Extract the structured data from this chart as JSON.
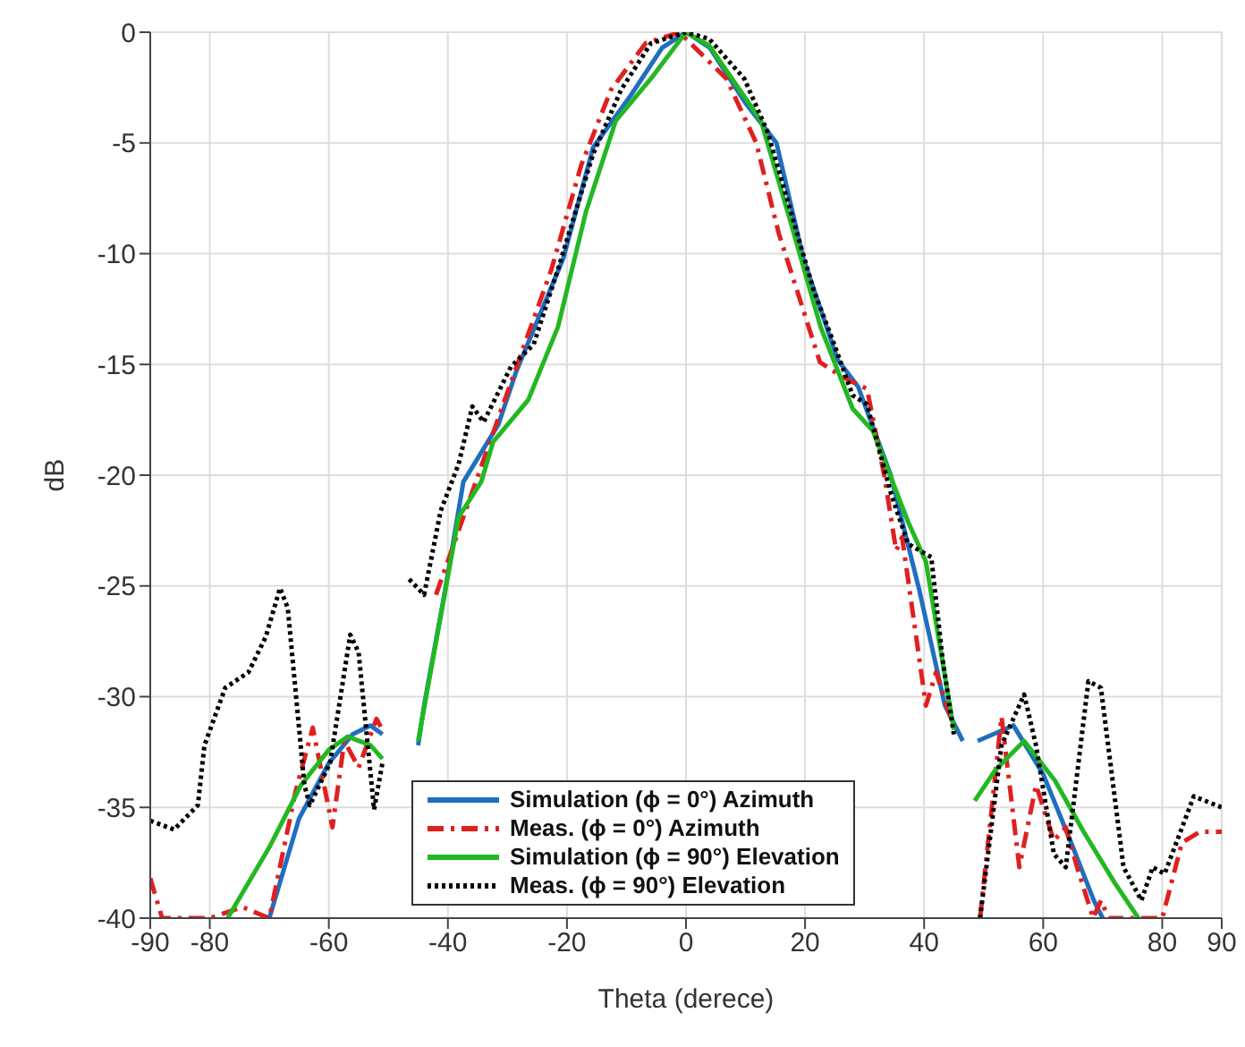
{
  "chart_data": {
    "type": "line",
    "xlabel": "Theta (derece)",
    "ylabel": "dB",
    "xlim": [
      -90,
      90
    ],
    "ylim": [
      -40,
      0
    ],
    "xticks": [
      -90,
      -80,
      -60,
      -40,
      -20,
      0,
      20,
      40,
      60,
      80,
      90
    ],
    "yticks": [
      -40,
      -35,
      -30,
      -25,
      -20,
      -15,
      -10,
      -5,
      0
    ],
    "grid": true,
    "legend": "bottom",
    "marker": "none",
    "series": [
      {
        "name": "Simulation  (ϕ = 0°) Azimuth",
        "color": "#1f6fbf",
        "line_style": "solid",
        "x": [
          -70,
          -65,
          -60,
          -56,
          -53,
          -51,
          -49,
          -45,
          -44,
          -40.6,
          -37.4,
          -31.5,
          -28.5,
          -20.6,
          -15.6,
          -9.4,
          -4,
          0,
          4,
          10,
          15.2,
          19.7,
          25.5,
          28.9,
          34.4,
          39.2,
          43.5,
          46.5,
          47.6,
          49,
          55,
          60,
          65,
          68.5,
          70
        ],
        "values": [
          -40,
          -35.5,
          -33,
          -31.7,
          -31.3,
          -31.7,
          null,
          -32.2,
          -30.4,
          -25.4,
          -20.3,
          -17.7,
          -15.3,
          -10.2,
          -5.2,
          -2.9,
          -0.7,
          0,
          -0.7,
          -3.2,
          -5,
          -10.2,
          -14.8,
          -16,
          -20,
          -25.2,
          -30.4,
          -32,
          null,
          -32,
          -31.3,
          -33.5,
          -36.8,
          -39.2,
          -40
        ]
      },
      {
        "name": "Meas.  (ϕ = 0°) Azimuth",
        "color": "#e02020",
        "line_style": "dashed",
        "x": [
          -90,
          -88,
          -80,
          -74.5,
          -70,
          -65.6,
          -62.7,
          -59.4,
          -57.4,
          -55,
          -52,
          -51,
          -45,
          -42,
          -35.3,
          -31.5,
          -27.4,
          -22.6,
          -17.6,
          -12.6,
          -6.8,
          -1,
          0,
          6.8,
          11.8,
          15.6,
          20.6,
          22.5,
          26.5,
          30.4,
          33.3,
          35.3,
          36.3,
          40.3,
          42,
          45,
          47.6,
          49.4,
          53,
          56,
          58.8,
          61.8,
          63.8,
          65.7,
          68.4,
          69.7,
          71,
          80,
          83.3,
          86.3,
          90
        ],
        "values": [
          -38.2,
          -40,
          -40,
          -39.5,
          -40,
          -34.3,
          -31.4,
          -35.9,
          -32,
          -33.2,
          -31,
          -31.5,
          null,
          -25.4,
          -20.3,
          -17.4,
          -14.3,
          -10.7,
          -6,
          -2.6,
          -0.5,
          0,
          -0.3,
          -2.1,
          -5,
          -9.1,
          -13.3,
          -14.9,
          -15.6,
          -16.1,
          -20,
          -23.4,
          -22.8,
          -30.4,
          -28.9,
          -31.4,
          null,
          -40,
          -30.9,
          -37.7,
          -34,
          -36.5,
          -35.9,
          -37.7,
          -40,
          -39.2,
          -40,
          -40,
          -36.6,
          -36.1,
          -36.1
        ]
      },
      {
        "name": "Simulation  (ϕ = 90°) Elevation",
        "color": "#22b822",
        "line_style": "solid",
        "x": [
          -77,
          -70,
          -64.7,
          -60,
          -56.8,
          -53,
          -51,
          -49,
          -45,
          -38.2,
          -34.4,
          -32.4,
          -26.5,
          -21.5,
          -16.8,
          -11.8,
          -5.9,
          0,
          3.9,
          12.6,
          17.6,
          22.6,
          28,
          31.4,
          37.3,
          40.3,
          45,
          47.6,
          48.5,
          52,
          56.8,
          62,
          66.8,
          72,
          76
        ],
        "values": [
          -40,
          -36.8,
          -34,
          -32.4,
          -31.8,
          -32.2,
          -32.8,
          null,
          -32,
          -21.9,
          -20.3,
          -18.5,
          -16.6,
          -13.3,
          -8.1,
          -4,
          -2.1,
          0,
          -0.6,
          -4,
          -8.6,
          -13.3,
          -17,
          -18,
          -22.1,
          -23.9,
          -31.5,
          null,
          -34.7,
          -33.3,
          -32,
          -33.8,
          -36.1,
          -38.4,
          -40
        ]
      },
      {
        "name": "Meas.  (ϕ = 90°) Elevation",
        "color": "#000000",
        "line_style": "dotted",
        "x": [
          -90,
          -86,
          -82,
          -80.9,
          -77.4,
          -73.5,
          -70.6,
          -68.2,
          -66.9,
          -64.1,
          -63.2,
          -59.8,
          -56.4,
          -55,
          -52.4,
          -51,
          -49,
          -46.5,
          -44,
          -41.2,
          -38.2,
          -35.9,
          -34,
          -29.4,
          -25.6,
          -21.5,
          -15.6,
          -10.9,
          -5.9,
          0,
          3.9,
          9.8,
          13.7,
          17.6,
          21.5,
          24.5,
          28,
          30.4,
          34.4,
          37.3,
          41.2,
          43.1,
          45,
          47.6,
          49.4,
          53,
          56.8,
          58.8,
          61.8,
          63.8,
          67.6,
          69.7,
          73.5,
          76.5,
          78.4,
          80.4,
          85.3,
          90
        ],
        "values": [
          -35.6,
          -36,
          -34.9,
          -32.2,
          -29.6,
          -28.9,
          -27.3,
          -25.1,
          -26,
          -34,
          -34.9,
          -33,
          -27.2,
          -28,
          -35.1,
          -33,
          null,
          -24.7,
          -25.4,
          -21.6,
          -19.5,
          -16.9,
          -17.6,
          -15.1,
          -14.1,
          -10.7,
          -5.5,
          -2.6,
          -0.5,
          0,
          -0.3,
          -2.1,
          -4.5,
          -8.1,
          -11.7,
          -13.8,
          -16.4,
          -16.8,
          -20.8,
          -23.1,
          -23.7,
          -28.3,
          -31.7,
          null,
          -40,
          -32.2,
          -29.9,
          -32.2,
          -37.1,
          -37.7,
          -29.3,
          -29.6,
          -37.7,
          -39.2,
          -37.7,
          -38,
          -34.5,
          -35
        ]
      }
    ]
  }
}
